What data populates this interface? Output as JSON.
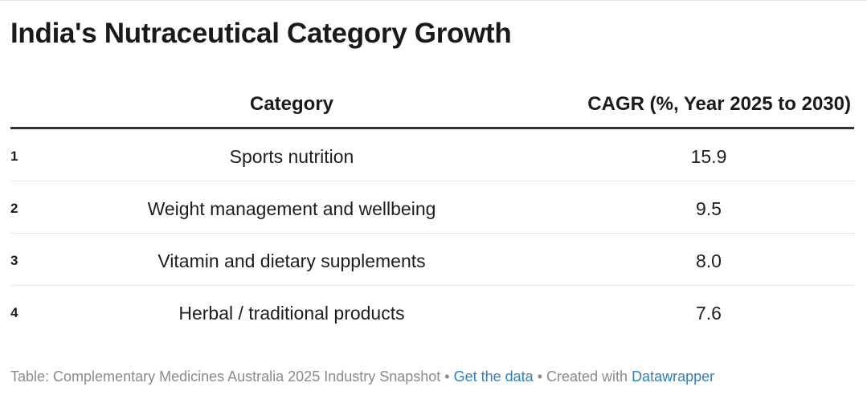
{
  "title": "India's Nutraceutical Category Growth",
  "chart_data": {
    "type": "table",
    "title": "India's Nutraceutical Category Growth",
    "columns": [
      "",
      "Category",
      "CAGR (%, Year 2025 to 2030)"
    ],
    "rows": [
      {
        "rank": "1",
        "category": "Sports nutrition",
        "value": "15.9"
      },
      {
        "rank": "2",
        "category": "Weight management and wellbeing",
        "value": "9.5"
      },
      {
        "rank": "3",
        "category": "Vitamin and dietary supplements",
        "value": "8.0"
      },
      {
        "rank": "4",
        "category": "Herbal / traditional products",
        "value": "7.6"
      }
    ]
  },
  "footer": {
    "source": "Table: Complementary Medicines Australia 2025 Industry Snapshot",
    "separator": " • ",
    "get_data": "Get the data",
    "created_with": "Created with ",
    "datawrapper": "Datawrapper"
  },
  "colors": {
    "link": "#2f7fbd",
    "footer_text": "#8a8a8a",
    "header_rule": "#333333"
  }
}
